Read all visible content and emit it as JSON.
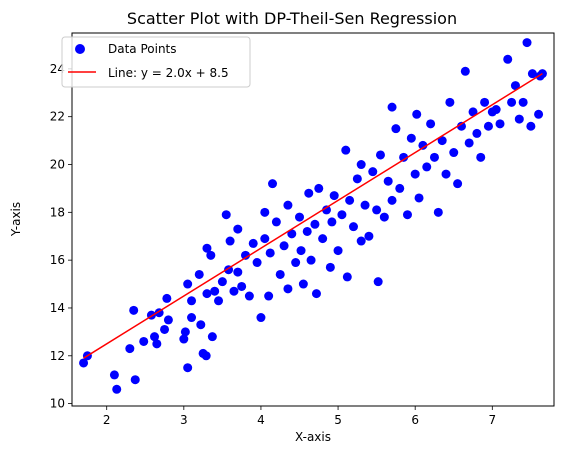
{
  "chart_data": {
    "type": "scatter",
    "title": "Scatter Plot with DP-Theil-Sen Regression",
    "xlabel": "X-axis",
    "ylabel": "Y-axis",
    "xlim": [
      1.55,
      7.8
    ],
    "ylim": [
      9.9,
      25.5
    ],
    "xticks": [
      "2",
      "3",
      "4",
      "5",
      "6",
      "7"
    ],
    "yticks": [
      "10",
      "12",
      "14",
      "16",
      "18",
      "20",
      "22",
      "24"
    ],
    "grid": false,
    "legend_position": "upper-left",
    "series": [
      {
        "name": "Data Points",
        "kind": "scatter",
        "color": "#0000ff",
        "points": [
          [
            1.7,
            11.7
          ],
          [
            1.75,
            12.0
          ],
          [
            2.1,
            11.2
          ],
          [
            2.13,
            10.6
          ],
          [
            2.3,
            12.3
          ],
          [
            2.37,
            11.0
          ],
          [
            2.35,
            13.9
          ],
          [
            2.48,
            12.6
          ],
          [
            2.58,
            13.7
          ],
          [
            2.68,
            13.8
          ],
          [
            2.62,
            12.8
          ],
          [
            2.65,
            12.5
          ],
          [
            2.8,
            13.5
          ],
          [
            2.75,
            13.1
          ],
          [
            2.78,
            14.4
          ],
          [
            3.0,
            12.7
          ],
          [
            3.02,
            13.0
          ],
          [
            3.05,
            11.5
          ],
          [
            3.1,
            14.3
          ],
          [
            3.05,
            15.0
          ],
          [
            3.1,
            13.6
          ],
          [
            3.2,
            15.4
          ],
          [
            3.22,
            13.3
          ],
          [
            3.25,
            12.1
          ],
          [
            3.29,
            12.0
          ],
          [
            3.3,
            16.5
          ],
          [
            3.3,
            14.6
          ],
          [
            3.35,
            16.2
          ],
          [
            3.37,
            12.8
          ],
          [
            3.4,
            14.7
          ],
          [
            3.45,
            14.3
          ],
          [
            3.5,
            15.1
          ],
          [
            3.55,
            17.9
          ],
          [
            3.58,
            15.6
          ],
          [
            3.6,
            16.8
          ],
          [
            3.65,
            14.7
          ],
          [
            3.7,
            17.3
          ],
          [
            3.7,
            15.5
          ],
          [
            3.75,
            14.9
          ],
          [
            3.8,
            16.2
          ],
          [
            3.85,
            14.5
          ],
          [
            3.9,
            16.7
          ],
          [
            3.95,
            15.9
          ],
          [
            4.0,
            13.6
          ],
          [
            4.05,
            16.9
          ],
          [
            4.05,
            18.0
          ],
          [
            4.1,
            14.5
          ],
          [
            4.12,
            16.3
          ],
          [
            4.15,
            19.2
          ],
          [
            4.2,
            17.6
          ],
          [
            4.25,
            15.4
          ],
          [
            4.3,
            16.6
          ],
          [
            4.35,
            18.3
          ],
          [
            4.35,
            14.8
          ],
          [
            4.4,
            17.1
          ],
          [
            4.45,
            15.9
          ],
          [
            4.5,
            17.8
          ],
          [
            4.52,
            16.4
          ],
          [
            4.55,
            15.0
          ],
          [
            4.6,
            17.2
          ],
          [
            4.62,
            18.8
          ],
          [
            4.65,
            16.0
          ],
          [
            4.7,
            17.5
          ],
          [
            4.72,
            14.6
          ],
          [
            4.75,
            19.0
          ],
          [
            4.8,
            16.9
          ],
          [
            4.85,
            18.1
          ],
          [
            4.9,
            15.7
          ],
          [
            4.92,
            17.6
          ],
          [
            4.95,
            18.7
          ],
          [
            5.0,
            16.4
          ],
          [
            5.05,
            17.9
          ],
          [
            5.1,
            20.6
          ],
          [
            5.12,
            15.3
          ],
          [
            5.15,
            18.5
          ],
          [
            5.2,
            17.4
          ],
          [
            5.25,
            19.4
          ],
          [
            5.3,
            16.8
          ],
          [
            5.3,
            20.0
          ],
          [
            5.35,
            18.3
          ],
          [
            5.4,
            17.0
          ],
          [
            5.45,
            19.7
          ],
          [
            5.5,
            18.1
          ],
          [
            5.52,
            15.1
          ],
          [
            5.55,
            20.4
          ],
          [
            5.6,
            17.8
          ],
          [
            5.65,
            19.3
          ],
          [
            5.7,
            18.5
          ],
          [
            5.75,
            21.5
          ],
          [
            5.7,
            22.4
          ],
          [
            5.8,
            19.0
          ],
          [
            5.85,
            20.3
          ],
          [
            5.9,
            17.9
          ],
          [
            5.95,
            21.1
          ],
          [
            6.0,
            19.6
          ],
          [
            6.02,
            22.1
          ],
          [
            6.05,
            18.6
          ],
          [
            6.1,
            20.8
          ],
          [
            6.15,
            19.9
          ],
          [
            6.2,
            21.7
          ],
          [
            6.25,
            20.3
          ],
          [
            6.3,
            18.0
          ],
          [
            6.35,
            21.0
          ],
          [
            6.4,
            19.6
          ],
          [
            6.45,
            22.6
          ],
          [
            6.5,
            20.5
          ],
          [
            6.55,
            19.2
          ],
          [
            6.6,
            21.6
          ],
          [
            6.65,
            23.9
          ],
          [
            6.7,
            20.9
          ],
          [
            6.75,
            22.2
          ],
          [
            6.8,
            21.3
          ],
          [
            6.85,
            20.3
          ],
          [
            6.9,
            22.6
          ],
          [
            6.95,
            21.6
          ],
          [
            7.0,
            22.2
          ],
          [
            7.05,
            22.3
          ],
          [
            7.1,
            21.7
          ],
          [
            7.2,
            24.4
          ],
          [
            7.25,
            22.6
          ],
          [
            7.3,
            23.3
          ],
          [
            7.35,
            21.9
          ],
          [
            7.4,
            22.6
          ],
          [
            7.45,
            25.1
          ],
          [
            7.5,
            21.6
          ],
          [
            7.52,
            23.8
          ],
          [
            7.6,
            22.1
          ],
          [
            7.65,
            23.8
          ],
          [
            7.62,
            23.7
          ]
        ]
      },
      {
        "name": "Line: y = 2.0x + 8.5",
        "kind": "line",
        "color": "#ff0000",
        "slope": 2.0,
        "intercept": 8.5,
        "x_range": [
          1.7,
          7.65
        ]
      }
    ]
  }
}
